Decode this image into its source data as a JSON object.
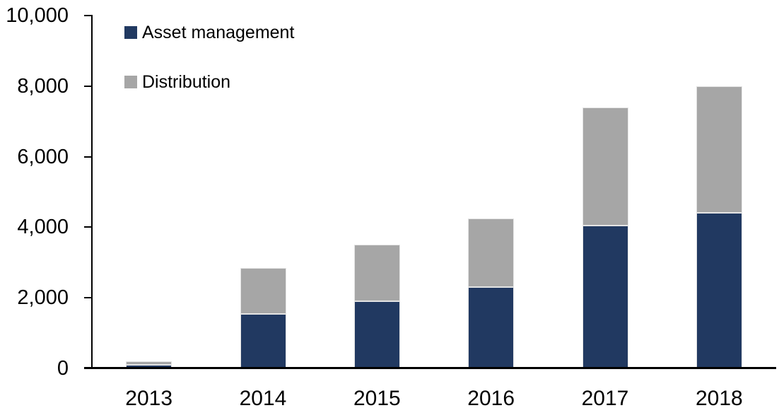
{
  "chart_data": {
    "type": "bar",
    "stacked": true,
    "title": "",
    "xlabel": "",
    "ylabel": "",
    "categories": [
      "2013",
      "2014",
      "2015",
      "2016",
      "2017",
      "2018"
    ],
    "series": [
      {
        "name": "Asset management",
        "color": "#213961",
        "values": [
          100,
          1550,
          1900,
          2300,
          4050,
          4400
        ]
      },
      {
        "name": "Distribution",
        "color": "#a6a6a6",
        "values": [
          100,
          1300,
          1600,
          1950,
          3350,
          3600
        ]
      }
    ],
    "ylim": [
      0,
      10000
    ],
    "ytick_interval": 2000,
    "ytick_labels": [
      "0",
      "2,000",
      "4,000",
      "6,000",
      "8,000",
      "10,000"
    ],
    "grid": false,
    "legend_position": "top-left",
    "axis_color": "#000000",
    "background_color": "#ffffff"
  }
}
